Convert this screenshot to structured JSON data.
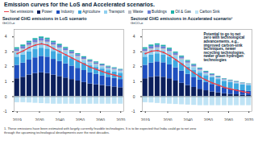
{
  "title": "Emission curves for the LoS and Accelerated scenarios.",
  "footnote": "1. These emissions have been estimated with largely currently feasible technologies. It is to be expected that India could go to net zero through the upcoming technological developments over the next decades.",
  "chart_data": [
    {
      "type": "bar",
      "stacked": true,
      "legend": "top",
      "grid": false,
      "title": "Sectoral GHG emissions in LoS scenario",
      "subtitle": "GtCO₂e",
      "x": [
        2019,
        2022,
        2025,
        2028,
        2031,
        2034,
        2037,
        2040,
        2043,
        2046,
        2049,
        2052,
        2055,
        2058,
        2061,
        2064,
        2067,
        2070
      ],
      "xlim": [
        2017.5,
        2071.5
      ],
      "xticks": [
        2019,
        2030,
        2040,
        2050,
        2060,
        2070
      ],
      "ylim": [
        -1,
        4.5
      ],
      "yticks": [
        -1,
        0,
        1,
        2,
        3,
        4
      ],
      "series": [
        {
          "name": "Net emissions",
          "type": "line",
          "color": "#e8414b",
          "values": [
            2.88,
            3.06,
            3.29,
            3.45,
            3.54,
            3.44,
            3.21,
            3.01,
            2.8,
            2.59,
            2.38,
            2.18,
            1.97,
            1.83,
            1.68,
            1.54,
            1.44,
            1.33
          ]
        },
        {
          "name": "Power",
          "color": "#0b1f5c",
          "values": [
            1.2,
            1.3,
            1.45,
            1.55,
            1.6,
            1.55,
            1.45,
            1.35,
            1.25,
            1.15,
            1.05,
            0.95,
            0.85,
            0.8,
            0.75,
            0.7,
            0.65,
            0.6
          ]
        },
        {
          "name": "Industry",
          "color": "#1f4fbf",
          "values": [
            0.9,
            0.95,
            1.0,
            1.05,
            1.1,
            1.1,
            1.05,
            1.0,
            0.95,
            0.9,
            0.85,
            0.8,
            0.75,
            0.7,
            0.65,
            0.6,
            0.58,
            0.55
          ]
        },
        {
          "name": "Agriculture",
          "color": "#3fa8e0",
          "values": [
            0.55,
            0.55,
            0.55,
            0.55,
            0.55,
            0.54,
            0.53,
            0.52,
            0.51,
            0.5,
            0.49,
            0.48,
            0.47,
            0.46,
            0.45,
            0.44,
            0.43,
            0.42
          ]
        },
        {
          "name": "Transport",
          "color": "#8fd0f0",
          "values": [
            0.3,
            0.32,
            0.35,
            0.37,
            0.38,
            0.37,
            0.35,
            0.32,
            0.29,
            0.26,
            0.23,
            0.2,
            0.18,
            0.16,
            0.14,
            0.12,
            0.11,
            0.1
          ]
        },
        {
          "name": "Waste",
          "color": "#b9bcc4",
          "values": [
            0.08,
            0.08,
            0.09,
            0.09,
            0.09,
            0.09,
            0.08,
            0.08,
            0.08,
            0.07,
            0.07,
            0.07,
            0.06,
            0.06,
            0.06,
            0.05,
            0.05,
            0.05
          ]
        },
        {
          "name": "Buildings",
          "color": "#6b7fd6",
          "values": [
            0.15,
            0.16,
            0.17,
            0.18,
            0.18,
            0.17,
            0.16,
            0.15,
            0.14,
            0.13,
            0.12,
            0.11,
            0.1,
            0.09,
            0.08,
            0.08,
            0.07,
            0.07
          ]
        },
        {
          "name": "Oil & Gas",
          "color": "#20b2aa",
          "values": [
            0.1,
            0.1,
            0.1,
            0.1,
            0.1,
            0.1,
            0.09,
            0.09,
            0.08,
            0.08,
            0.07,
            0.07,
            0.06,
            0.06,
            0.05,
            0.05,
            0.05,
            0.04
          ]
        },
        {
          "name": "Carbon Sink",
          "color": "#bfe3f5",
          "values": [
            -0.4,
            -0.4,
            -0.42,
            -0.44,
            -0.46,
            -0.48,
            -0.5,
            -0.5,
            -0.5,
            -0.5,
            -0.5,
            -0.5,
            -0.5,
            -0.5,
            -0.5,
            -0.5,
            -0.5,
            -0.5
          ]
        }
      ]
    },
    {
      "type": "bar",
      "stacked": true,
      "grid": false,
      "title": "Sectoral GHG emissions in Accelerated scenario¹",
      "subtitle": "GtCO₂e",
      "annotation": "Potential to go to net zero with technological advancements, e.g., improved carbon-sink techniques, newer recycling technologies, newer green hydrogen technologies",
      "x": [
        2019,
        2022,
        2025,
        2028,
        2031,
        2034,
        2037,
        2040,
        2043,
        2046,
        2049,
        2052,
        2055,
        2058,
        2061,
        2064,
        2067,
        2070
      ],
      "xlim": [
        2017.5,
        2071.5
      ],
      "xticks": [
        2019,
        2030,
        2040,
        2050,
        2060,
        2070
      ],
      "ylim": [
        -1,
        4.5
      ],
      "yticks": [
        -1,
        0,
        1,
        2,
        3,
        4
      ],
      "series": [
        {
          "name": "Net emissions",
          "type": "line",
          "color": "#e8414b",
          "values": [
            2.88,
            3.04,
            3.09,
            2.96,
            2.75,
            2.47,
            2.18,
            1.87,
            1.59,
            1.32,
            1.1,
            0.92,
            0.77,
            0.61,
            0.51,
            0.42,
            0.33,
            0.26
          ]
        },
        {
          "name": "Power",
          "color": "#0b1f5c",
          "values": [
            1.2,
            1.3,
            1.35,
            1.3,
            1.2,
            1.05,
            0.9,
            0.75,
            0.62,
            0.5,
            0.4,
            0.32,
            0.26,
            0.2,
            0.16,
            0.13,
            0.1,
            0.08
          ]
        },
        {
          "name": "Industry",
          "color": "#1f4fbf",
          "values": [
            0.9,
            0.95,
            0.98,
            0.97,
            0.93,
            0.88,
            0.82,
            0.75,
            0.68,
            0.61,
            0.55,
            0.5,
            0.45,
            0.4,
            0.36,
            0.33,
            0.3,
            0.28
          ]
        },
        {
          "name": "Agriculture",
          "color": "#3fa8e0",
          "values": [
            0.55,
            0.55,
            0.54,
            0.53,
            0.52,
            0.51,
            0.5,
            0.49,
            0.48,
            0.47,
            0.46,
            0.45,
            0.44,
            0.43,
            0.42,
            0.41,
            0.4,
            0.39
          ]
        },
        {
          "name": "Transport",
          "color": "#8fd0f0",
          "values": [
            0.3,
            0.32,
            0.33,
            0.32,
            0.3,
            0.27,
            0.24,
            0.2,
            0.17,
            0.14,
            0.11,
            0.09,
            0.07,
            0.06,
            0.05,
            0.04,
            0.03,
            0.03
          ]
        },
        {
          "name": "Waste",
          "color": "#b9bcc4",
          "values": [
            0.08,
            0.08,
            0.08,
            0.08,
            0.07,
            0.07,
            0.07,
            0.06,
            0.06,
            0.06,
            0.05,
            0.05,
            0.05,
            0.04,
            0.04,
            0.04,
            0.04,
            0.03
          ]
        },
        {
          "name": "Buildings",
          "color": "#6b7fd6",
          "values": [
            0.15,
            0.16,
            0.16,
            0.15,
            0.14,
            0.13,
            0.12,
            0.11,
            0.1,
            0.09,
            0.08,
            0.07,
            0.06,
            0.05,
            0.05,
            0.04,
            0.04,
            0.03
          ]
        },
        {
          "name": "Oil & Gas",
          "color": "#20b2aa",
          "values": [
            0.1,
            0.1,
            0.1,
            0.09,
            0.09,
            0.08,
            0.07,
            0.07,
            0.06,
            0.05,
            0.05,
            0.04,
            0.04,
            0.03,
            0.03,
            0.03,
            0.02,
            0.02
          ]
        },
        {
          "name": "Carbon Sink",
          "color": "#bfe3f5",
          "values": [
            -0.4,
            -0.42,
            -0.45,
            -0.48,
            -0.5,
            -0.52,
            -0.54,
            -0.56,
            -0.58,
            -0.6,
            -0.6,
            -0.6,
            -0.6,
            -0.6,
            -0.6,
            -0.6,
            -0.6,
            -0.6
          ]
        }
      ]
    }
  ]
}
